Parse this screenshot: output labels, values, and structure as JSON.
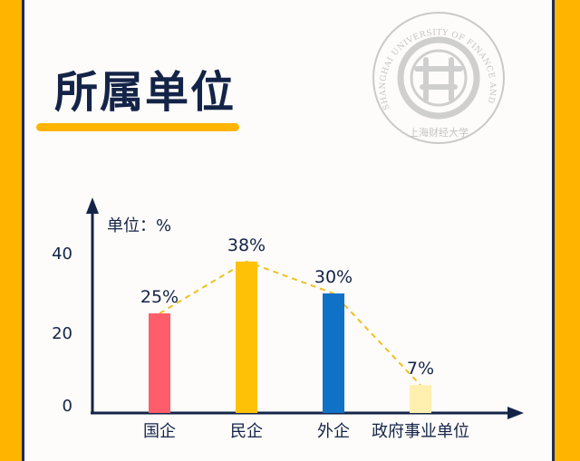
{
  "title": "所属单位",
  "seal": {
    "ring_text": "SHANGHAI UNIVERSITY OF FINANCE AND ECONOMICS",
    "bottom_text": "上海财经大学"
  },
  "colors": {
    "accent": "#ffb400",
    "navy": "#142448",
    "dashed_line": "#f0c020"
  },
  "chart_data": {
    "type": "bar",
    "unit_label": "单位：%",
    "categories": [
      "国企",
      "民企",
      "外企",
      "政府事业单位"
    ],
    "values": [
      25,
      38,
      30,
      7
    ],
    "value_labels": [
      "25%",
      "38%",
      "30%",
      "7%"
    ],
    "colors": [
      "#ff5d6a",
      "#ffc107",
      "#0f72c6",
      "#fff0b0"
    ],
    "yticks": [
      0,
      20,
      40
    ],
    "ylim": [
      0,
      50
    ],
    "trend_line": "dashed",
    "grid": false,
    "legend": "none"
  }
}
